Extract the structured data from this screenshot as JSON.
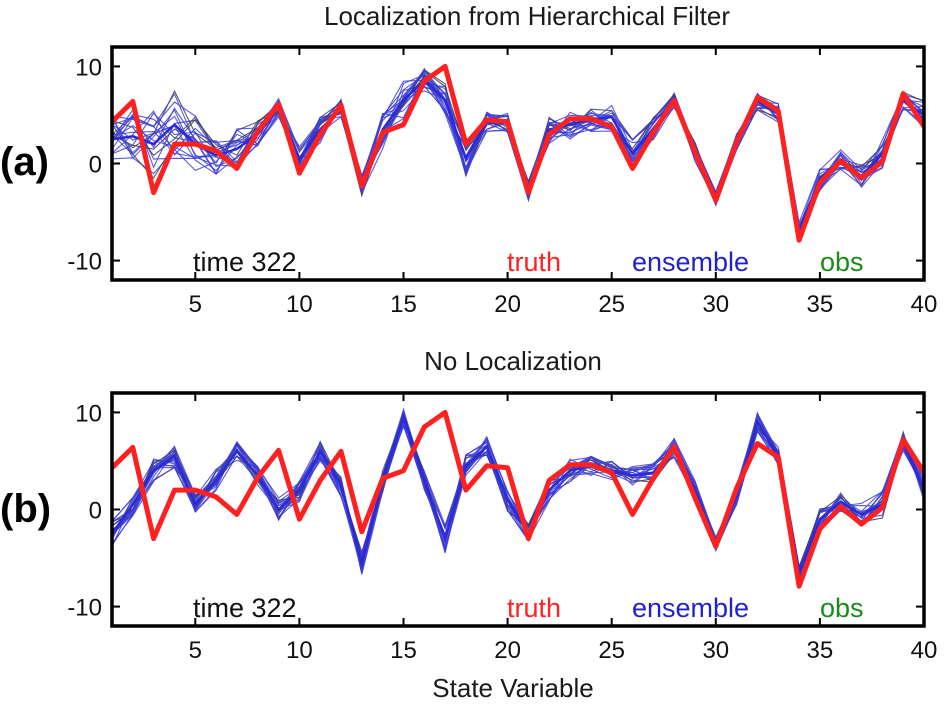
{
  "chart_data": [
    {
      "type": "line",
      "panel_label": "(a)",
      "title": "Localization from Hierarchical Filter",
      "xlabel": "",
      "ylabel": "",
      "xlim": [
        1,
        40
      ],
      "ylim": [
        -12,
        12
      ],
      "xticks": [
        5,
        10,
        15,
        20,
        25,
        30,
        35,
        40
      ],
      "yticks": [
        -10,
        0,
        10
      ],
      "legend": {
        "placement": "bottom",
        "time_label": "time 322",
        "truth": "truth",
        "ensemble": "ensemble",
        "obs": "obs"
      },
      "series": [
        {
          "name": "truth",
          "color": "#ff2020",
          "values": [
            4.3,
            6.4,
            -3.0,
            2.0,
            2.0,
            1.3,
            -0.5,
            3.3,
            6.1,
            -1.0,
            3.0,
            6.0,
            -2.3,
            3.2,
            4.0,
            8.5,
            10.0,
            2.0,
            4.5,
            4.3,
            -3.0,
            3.0,
            4.6,
            4.6,
            3.8,
            -0.5,
            3.2,
            6.5,
            1.2,
            -3.8,
            2.2,
            6.8,
            5.4,
            -7.9,
            -2.0,
            0.3,
            -1.5,
            0.2,
            7.2,
            3.8
          ]
        },
        {
          "name": "ensemble",
          "color": "#2a2ad8",
          "values": [
            2.5,
            2.8,
            2.0,
            4.0,
            2.0,
            0.8,
            1.5,
            3.0,
            5.8,
            0.5,
            3.5,
            5.6,
            -2.2,
            3.5,
            6.5,
            8.6,
            6.5,
            0.5,
            4.3,
            4.2,
            -2.8,
            3.5,
            4.0,
            4.5,
            4.8,
            1.0,
            3.6,
            6.3,
            1.4,
            -3.6,
            2.3,
            6.4,
            5.2,
            -7.0,
            -1.6,
            0.4,
            -1.3,
            1.0,
            6.5,
            5.0
          ],
          "spread": [
            2.5,
            3.0,
            4.0,
            3.5,
            3.0,
            2.0,
            2.2,
            1.5,
            1.0,
            1.5,
            1.5,
            1.0,
            1.2,
            2.0,
            2.0,
            1.2,
            1.8,
            1.8,
            1.0,
            1.0,
            1.0,
            1.5,
            1.5,
            1.2,
            1.5,
            1.5,
            1.2,
            1.0,
            1.2,
            0.8,
            1.0,
            1.0,
            1.0,
            1.0,
            1.2,
            1.0,
            1.2,
            1.5,
            1.0,
            1.5
          ]
        }
      ]
    },
    {
      "type": "line",
      "panel_label": "(b)",
      "title": "No Localization",
      "xlabel": "State Variable",
      "ylabel": "",
      "xlim": [
        1,
        40
      ],
      "ylim": [
        -12,
        12
      ],
      "xticks": [
        5,
        10,
        15,
        20,
        25,
        30,
        35,
        40
      ],
      "yticks": [
        -10,
        0,
        10
      ],
      "legend": {
        "placement": "bottom",
        "time_label": "time 322",
        "truth": "truth",
        "ensemble": "ensemble",
        "obs": "obs"
      },
      "series": [
        {
          "name": "truth",
          "color": "#ff2020",
          "values": [
            4.3,
            6.4,
            -3.0,
            2.0,
            2.0,
            1.3,
            -0.5,
            3.3,
            6.1,
            -1.0,
            3.0,
            6.0,
            -2.3,
            3.2,
            4.0,
            8.5,
            10.0,
            2.0,
            4.5,
            4.3,
            -3.0,
            3.0,
            4.6,
            4.6,
            3.8,
            -0.5,
            3.2,
            6.5,
            1.2,
            -3.8,
            2.2,
            6.8,
            5.4,
            -7.9,
            -2.0,
            0.3,
            -1.5,
            0.2,
            7.2,
            3.8
          ]
        },
        {
          "name": "ensemble",
          "color": "#2a2ad8",
          "values": [
            -2.5,
            0.5,
            4.0,
            5.5,
            0.5,
            3.0,
            6.0,
            3.5,
            0.0,
            2.0,
            6.0,
            2.5,
            -5.5,
            3.0,
            9.5,
            3.0,
            -3.0,
            4.5,
            6.5,
            1.0,
            -2.5,
            2.0,
            4.0,
            4.5,
            4.0,
            3.5,
            3.8,
            6.3,
            2.0,
            -3.5,
            1.5,
            9.0,
            5.5,
            -6.5,
            -1.0,
            0.8,
            -0.5,
            0.5,
            7.0,
            2.0
          ],
          "spread": [
            1.5,
            1.2,
            1.2,
            1.2,
            1.2,
            1.2,
            1.0,
            1.0,
            1.2,
            1.2,
            1.0,
            1.2,
            1.2,
            1.2,
            1.0,
            1.0,
            1.5,
            1.2,
            1.0,
            1.2,
            1.0,
            1.2,
            1.2,
            1.2,
            1.0,
            1.0,
            1.0,
            1.0,
            1.0,
            0.8,
            1.0,
            1.0,
            1.0,
            1.0,
            1.2,
            1.0,
            1.2,
            1.5,
            1.0,
            1.2
          ]
        }
      ]
    }
  ]
}
